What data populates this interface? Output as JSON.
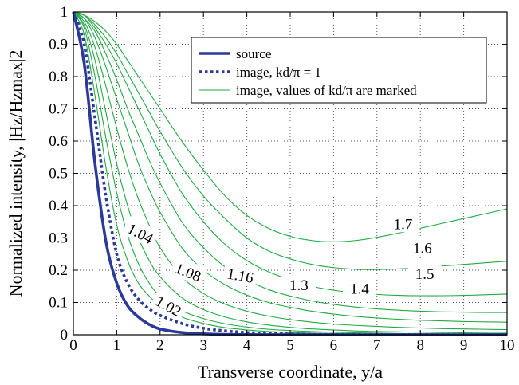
{
  "chart_data": {
    "type": "line",
    "title": "",
    "xlabel": "Transverse coordinate, y/a",
    "ylabel": "Normalized  intensity, |Hz/Hzmax|2",
    "xlim": [
      0,
      10
    ],
    "ylim": [
      0,
      1
    ],
    "x_ticks": [
      "0",
      "1",
      "2",
      "3",
      "4",
      "5",
      "6",
      "7",
      "8",
      "9",
      "10"
    ],
    "y_ticks": [
      "0",
      "0.1",
      "0.2",
      "0.3",
      "0.4",
      "0.5",
      "0.6",
      "0.7",
      "0.8",
      "0.9",
      "1"
    ],
    "grid": true,
    "legend_position": "top-right",
    "legend": [
      {
        "label": "source",
        "style": "thick-solid",
        "color": "#2b3a98"
      },
      {
        "label": "image, kd/π = 1",
        "style": "thick-dotted",
        "color": "#2b3a98"
      },
      {
        "label": "image, values of kd/π are marked",
        "style": "thin-solid",
        "color": "#22aa44"
      }
    ],
    "x": [
      0,
      0.25,
      0.5,
      0.75,
      1,
      1.25,
      1.5,
      1.75,
      2,
      2.5,
      3,
      3.5,
      4,
      4.5,
      5,
      5.5,
      6,
      6.5,
      7,
      7.5,
      8,
      8.5,
      9,
      9.5,
      10
    ],
    "series": [
      {
        "name": "source",
        "style": "thick-solid",
        "color": "#2b3a98",
        "values": [
          1,
          0.84,
          0.53,
          0.29,
          0.16,
          0.09,
          0.055,
          0.032,
          0.018,
          0.007,
          0.003,
          0.001,
          0.0005,
          0.0002,
          0.0001,
          0,
          0,
          0,
          0,
          0,
          0,
          0,
          0,
          0,
          0
        ]
      },
      {
        "name": "image, kd/π = 1",
        "style": "thick-dotted",
        "color": "#2b3a98",
        "values": [
          1,
          0.9,
          0.67,
          0.43,
          0.25,
          0.16,
          0.11,
          0.08,
          0.06,
          0.035,
          0.02,
          0.012,
          0.007,
          0.004,
          0.002,
          0.001,
          0.0008,
          0.0005,
          0.0003,
          0.0002,
          0.0001,
          0,
          0,
          0,
          0
        ]
      },
      {
        "name": "",
        "marked_value": "1.02",
        "style": "thin-solid",
        "color": "#22aa44",
        "values": [
          1,
          0.93,
          0.74,
          0.52,
          0.34,
          0.23,
          0.16,
          0.12,
          0.09,
          0.055,
          0.035,
          0.022,
          0.015,
          0.01,
          0.007,
          0.005,
          0.004,
          0.003,
          0.002,
          0.002,
          0.001,
          0.001,
          0.001,
          0.001,
          0.001
        ]
      },
      {
        "name": "",
        "marked_value": "1.04",
        "style": "thin-solid",
        "color": "#22aa44",
        "values": [
          1,
          0.95,
          0.8,
          0.61,
          0.44,
          0.31,
          0.22,
          0.16,
          0.12,
          0.075,
          0.05,
          0.034,
          0.024,
          0.017,
          0.013,
          0.01,
          0.008,
          0.006,
          0.005,
          0.004,
          0.003,
          0.003,
          0.002,
          0.002,
          0.002
        ]
      },
      {
        "name": "",
        "marked_value": "1.08",
        "style": "thin-solid",
        "color": "#22aa44",
        "values": [
          1,
          0.96,
          0.85,
          0.69,
          0.53,
          0.4,
          0.3,
          0.23,
          0.18,
          0.115,
          0.078,
          0.055,
          0.04,
          0.03,
          0.023,
          0.018,
          0.015,
          0.012,
          0.01,
          0.009,
          0.008,
          0.007,
          0.006,
          0.005,
          0.005
        ]
      },
      {
        "name": "",
        "marked_value": "1.16",
        "style": "thin-solid",
        "color": "#22aa44",
        "values": [
          1,
          0.97,
          0.89,
          0.77,
          0.64,
          0.52,
          0.42,
          0.34,
          0.27,
          0.18,
          0.128,
          0.095,
          0.073,
          0.058,
          0.047,
          0.039,
          0.033,
          0.029,
          0.026,
          0.023,
          0.021,
          0.019,
          0.018,
          0.017,
          0.016
        ]
      },
      {
        "name": "",
        "marked_value": "1.3",
        "style": "thin-solid",
        "color": "#22aa44",
        "values": [
          1,
          0.98,
          0.92,
          0.83,
          0.73,
          0.63,
          0.53,
          0.45,
          0.38,
          0.27,
          0.2,
          0.155,
          0.123,
          0.1,
          0.085,
          0.073,
          0.064,
          0.057,
          0.052,
          0.048,
          0.045,
          0.043,
          0.041,
          0.04,
          0.039
        ]
      },
      {
        "name": "",
        "marked_value": "1.4",
        "style": "thin-solid",
        "color": "#22aa44",
        "values": [
          1,
          0.98,
          0.94,
          0.87,
          0.79,
          0.7,
          0.62,
          0.54,
          0.47,
          0.35,
          0.27,
          0.21,
          0.17,
          0.14,
          0.12,
          0.105,
          0.094,
          0.086,
          0.08,
          0.076,
          0.073,
          0.071,
          0.07,
          0.069,
          0.069
        ]
      },
      {
        "name": "",
        "marked_value": "1.5",
        "style": "thin-solid",
        "color": "#22aa44",
        "values": [
          1,
          0.99,
          0.95,
          0.9,
          0.84,
          0.77,
          0.7,
          0.63,
          0.56,
          0.44,
          0.35,
          0.28,
          0.23,
          0.195,
          0.17,
          0.15,
          0.138,
          0.13,
          0.125,
          0.122,
          0.121,
          0.121,
          0.122,
          0.124,
          0.126
        ]
      },
      {
        "name": "",
        "marked_value": "1.6",
        "style": "thin-solid",
        "color": "#22aa44",
        "values": [
          1,
          0.99,
          0.96,
          0.92,
          0.87,
          0.81,
          0.75,
          0.69,
          0.63,
          0.52,
          0.43,
          0.36,
          0.3,
          0.26,
          0.235,
          0.218,
          0.208,
          0.203,
          0.202,
          0.204,
          0.208,
          0.213,
          0.218,
          0.223,
          0.228
        ]
      },
      {
        "name": "",
        "marked_value": "1.7",
        "style": "thin-solid",
        "color": "#22aa44",
        "values": [
          1,
          0.99,
          0.97,
          0.94,
          0.9,
          0.85,
          0.8,
          0.75,
          0.7,
          0.6,
          0.51,
          0.43,
          0.37,
          0.33,
          0.305,
          0.292,
          0.288,
          0.292,
          0.302,
          0.315,
          0.33,
          0.345,
          0.36,
          0.375,
          0.39
        ]
      }
    ],
    "curve_labels": [
      {
        "text": "1.02",
        "x": 2.2,
        "y": 0.09
      },
      {
        "text": "1.04",
        "x": 1.55,
        "y": 0.315
      },
      {
        "text": "1.08",
        "x": 2.65,
        "y": 0.195
      },
      {
        "text": "1.16",
        "x": 3.85,
        "y": 0.185
      },
      {
        "text": "1.3",
        "x": 5.2,
        "y": 0.155
      },
      {
        "text": "1.4",
        "x": 6.6,
        "y": 0.145
      },
      {
        "text": "1.5",
        "x": 8.1,
        "y": 0.19
      },
      {
        "text": "1.6",
        "x": 8.05,
        "y": 0.27
      },
      {
        "text": "1.7",
        "x": 7.6,
        "y": 0.345
      }
    ]
  }
}
